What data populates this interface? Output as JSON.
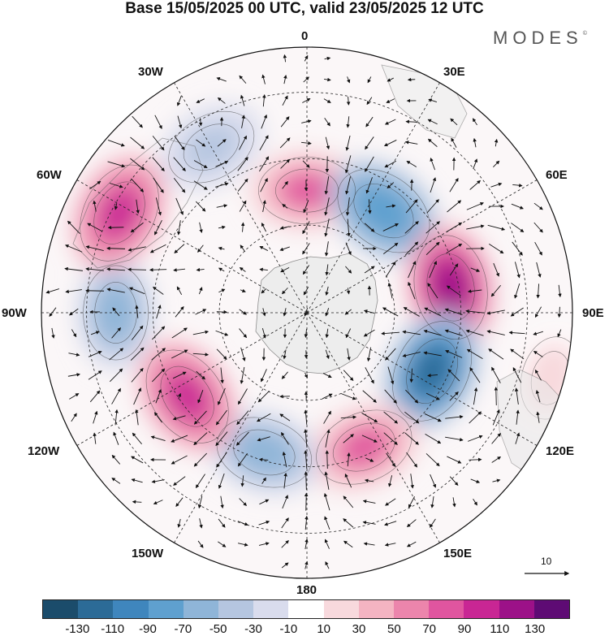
{
  "title": "Base 15/05/2025 00 UTC, valid 23/05/2025 12 UTC",
  "brand": {
    "text": "MODES",
    "mark": "©"
  },
  "longitude_labels": {
    "lon_0": "0",
    "lon_30e": "30E",
    "lon_60e": "60E",
    "lon_90e": "90E",
    "lon_120e": "120E",
    "lon_150e": "150E",
    "lon_180": "180",
    "lon_150w": "150W",
    "lon_120w": "120W",
    "lon_90w": "90W",
    "lon_60w": "60W",
    "lon_30w": "30W"
  },
  "reference_vector": {
    "label": "10"
  },
  "colorbar": {
    "colors": [
      "#1b4c6b",
      "#2c6b97",
      "#3f86bd",
      "#5fa0cf",
      "#8fb5d8",
      "#b5c6e0",
      "#d9dced",
      "#ffffff",
      "#f8d9dd",
      "#f4b4c2",
      "#ec85ac",
      "#e0559f",
      "#c92694",
      "#9c1188",
      "#5e0b74"
    ],
    "ticks": [
      "-130",
      "-110",
      "-90",
      "-70",
      "-50",
      "-30",
      "-10",
      "10",
      "30",
      "50",
      "70",
      "90",
      "110",
      "130"
    ]
  },
  "anomaly_centers": [
    {
      "sign": "pos",
      "lon": 0,
      "rel_r": 0.46,
      "value": 70
    },
    {
      "sign": "neg",
      "lon": 37,
      "rel_r": 0.48,
      "value": -90
    },
    {
      "sign": "pos",
      "lon": 80,
      "rel_r": 0.55,
      "value": 120
    },
    {
      "sign": "neg",
      "lon": 115,
      "rel_r": 0.52,
      "value": -120
    },
    {
      "sign": "pos",
      "lon": 157,
      "rel_r": 0.55,
      "value": 80
    },
    {
      "sign": "neg",
      "lon": -163,
      "rel_r": 0.55,
      "value": -70
    },
    {
      "sign": "pos",
      "lon": -125,
      "rel_r": 0.55,
      "value": 90
    },
    {
      "sign": "neg",
      "lon": -90,
      "rel_r": 0.72,
      "value": -60
    },
    {
      "sign": "pos",
      "lon": -62,
      "rel_r": 0.8,
      "value": 90
    },
    {
      "sign": "neg",
      "lon": -30,
      "rel_r": 0.72,
      "value": -50
    },
    {
      "sign": "pos",
      "lon": 105,
      "rel_r": 0.95,
      "value": 20
    }
  ]
}
